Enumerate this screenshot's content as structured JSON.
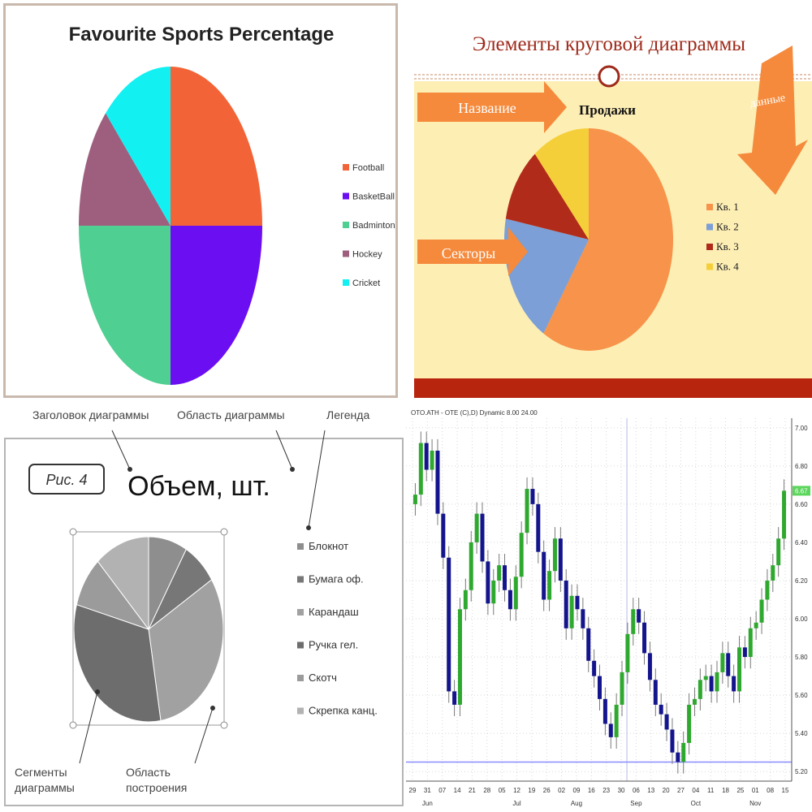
{
  "chart_data": [
    {
      "type": "pie",
      "title": "Favourite Sports Percentage",
      "categories": [
        "Football",
        "BasketBall",
        "Badminton",
        "Hockey",
        "Cricket"
      ],
      "values": [
        25,
        25,
        25,
        12.5,
        12.5
      ],
      "colors": [
        "#f26437",
        "#6b0ff2",
        "#4fcf91",
        "#9e5f7f",
        "#13f0f2"
      ],
      "legend_position": "right"
    },
    {
      "type": "pie",
      "title": "Продажи",
      "categories": [
        "Кв. 1",
        "Кв. 2",
        "Кв. 3",
        "Кв. 4"
      ],
      "values": [
        59,
        19,
        11,
        11
      ],
      "colors": [
        "#f7934a",
        "#7b9fd6",
        "#b12b1a",
        "#f5cf3a"
      ],
      "legend_position": "right",
      "slide_title": "Элементы  круговой диаграммы",
      "callouts": {
        "name": "Название",
        "sectors": "Секторы",
        "data": "данные"
      }
    },
    {
      "type": "pie",
      "title": "Объем, шт.",
      "badge": "Рис. 4",
      "categories": [
        "Блокнот",
        "Бумага оф.",
        "Карандаш",
        "Ручка гел.",
        "Скотч",
        "Скрепка канц."
      ],
      "values": [
        8.4,
        7.6,
        31.4,
        31.9,
        8.8,
        11.9
      ],
      "colors": [
        "#8e8e8e",
        "#777777",
        "#a1a1a1",
        "#6d6d6d",
        "#9b9b9b",
        "#b2b2b2"
      ],
      "legend_position": "right",
      "annotations": [
        "Заголовок диаграммы",
        "Область диаграммы",
        "Легенда",
        "Сегменты диаграммы",
        "Область построения"
      ]
    },
    {
      "type": "candlestick",
      "title": "OTO.ATH - OTE (C),D) Dynamic 8.00 24.00",
      "ylim": [
        5.15,
        7.05
      ],
      "yticks": [
        "7.00",
        "6.80",
        "6.60",
        "6.40",
        "6.20",
        "6.00",
        "5.80",
        "5.60",
        "5.40",
        "5.20"
      ],
      "last_price": "6.67",
      "reference_line": 5.25,
      "xticks": [
        "29",
        "31",
        "07",
        "14",
        "21",
        "28",
        "05",
        "12",
        "19",
        "26",
        "02",
        "09",
        "16",
        "23",
        "30",
        "06",
        "13",
        "20",
        "27",
        "04",
        "11",
        "18",
        "25",
        "01",
        "08",
        "15"
      ],
      "months": [
        "Jun",
        "Jul",
        "Aug",
        "Sep",
        "Oct",
        "Nov"
      ],
      "colors": {
        "up": "#2fa82f",
        "down": "#14148c",
        "grid": "#d8d8d8",
        "ref": "#8c8cff",
        "last": "#5cd65c"
      },
      "closes": [
        6.65,
        6.92,
        6.78,
        6.88,
        6.55,
        6.32,
        5.62,
        5.55,
        6.05,
        6.15,
        6.4,
        6.55,
        6.3,
        6.08,
        6.2,
        6.28,
        6.15,
        6.05,
        6.22,
        6.45,
        6.68,
        6.6,
        6.35,
        6.1,
        6.25,
        6.42,
        6.2,
        5.95,
        6.12,
        6.05,
        5.95,
        5.78,
        5.7,
        5.58,
        5.45,
        5.38,
        5.55,
        5.72,
        5.92,
        6.05,
        5.98,
        5.82,
        5.68,
        5.55,
        5.5,
        5.42,
        5.3,
        5.25,
        5.35,
        5.55,
        5.58,
        5.68,
        5.7,
        5.62,
        5.72,
        5.82,
        5.7,
        5.62,
        5.85,
        5.8,
        5.95,
        5.98,
        6.1,
        6.2,
        6.28,
        6.42,
        6.67
      ]
    }
  ]
}
